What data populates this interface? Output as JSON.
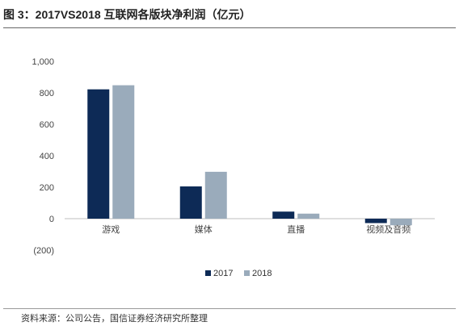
{
  "header": {
    "title": "图 3：2017VS2018 互联网各版块净利润（亿元）"
  },
  "footer": {
    "source": "资料来源：公司公告，国信证券经济研究所整理"
  },
  "chart_data": {
    "type": "bar",
    "title": "图 3：2017VS2018 互联网各版块净利润（亿元）",
    "categories": [
      "游戏",
      "媒体",
      "直播",
      "视频及音频"
    ],
    "series": [
      {
        "name": "2017",
        "values": [
          822,
          205,
          45,
          -28
        ],
        "color": "#0d2a56"
      },
      {
        "name": "2018",
        "values": [
          848,
          298,
          32,
          -42
        ],
        "color": "#9aabbb"
      }
    ],
    "y_ticks": [
      {
        "value": 1000,
        "label": "1,000"
      },
      {
        "value": 800,
        "label": "800"
      },
      {
        "value": 600,
        "label": "600"
      },
      {
        "value": 400,
        "label": "400"
      },
      {
        "value": 200,
        "label": "200"
      },
      {
        "value": 0,
        "label": "0"
      },
      {
        "value": -200,
        "label": "(200)",
        "color": "#cc0000"
      }
    ],
    "ylim": [
      -200,
      1000
    ],
    "grid": false,
    "legend": "bottom-center",
    "xlabel": "",
    "ylabel": ""
  }
}
